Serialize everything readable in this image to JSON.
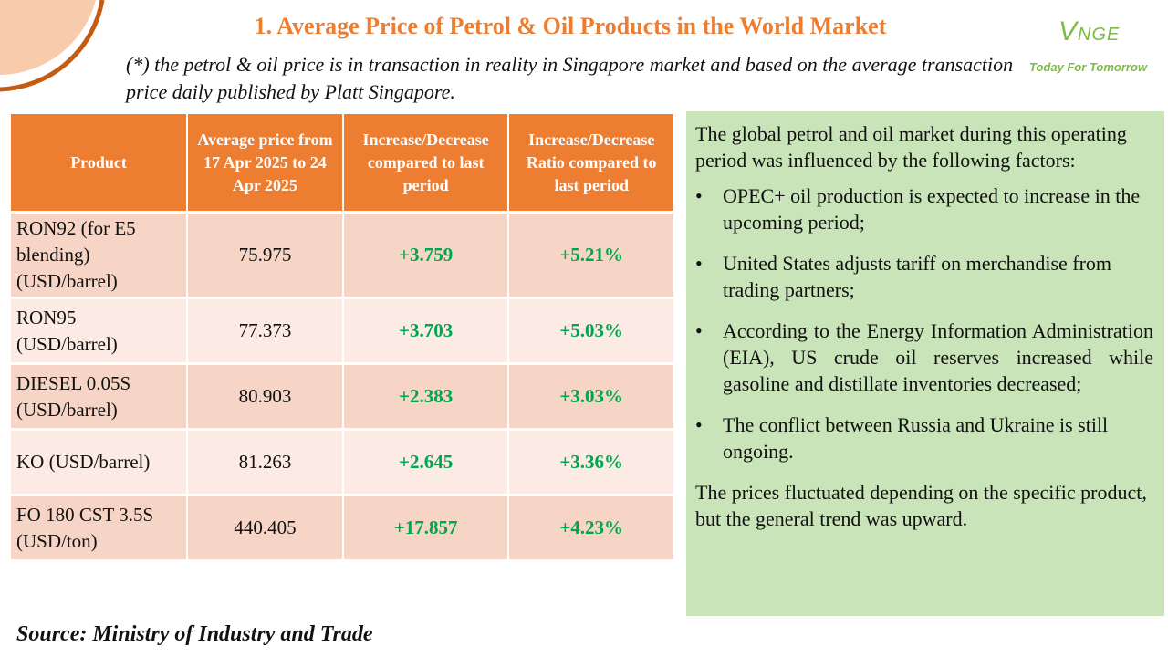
{
  "header": {
    "title": "1. Average Price of Petrol & Oil Products in the World Market",
    "subtitle": "(*) the petrol & oil price is in transaction in reality in Singapore market and based on the average transaction price daily published by Platt Singapore."
  },
  "logo": {
    "word": "VNGE",
    "tagline": "Today For Tomorrow",
    "color": "#7DBB42"
  },
  "table": {
    "headers": {
      "product": "Product",
      "avg_price": "Average price from 17 Apr 2025 to 24 Apr 2025",
      "change": "Increase/Decrease compared to last period",
      "ratio": "Increase/Decrease Ratio compared to last period"
    },
    "rows": [
      {
        "product": "RON92 (for E5 blending) (USD/barrel)",
        "avg_price": "75.975",
        "change": "+3.759",
        "ratio": "+5.21%"
      },
      {
        "product": "RON95 (USD/barrel)",
        "avg_price": "77.373",
        "change": "+3.703",
        "ratio": "+5.03%"
      },
      {
        "product": "DIESEL 0.05S (USD/barrel)",
        "avg_price": "80.903",
        "change": "+2.383",
        "ratio": "+3.03%"
      },
      {
        "product": "KO (USD/barrel)",
        "avg_price": "81.263",
        "change": "+2.645",
        "ratio": "+3.36%"
      },
      {
        "product": "FO 180 CST 3.5S (USD/ton)",
        "avg_price": "440.405",
        "change": "+17.857",
        "ratio": "+4.23%"
      }
    ],
    "colors": {
      "header": "#ED7D31",
      "row_dark": "#F6D5C6",
      "row_light": "#FBEBE4",
      "positive": "#00A64F"
    }
  },
  "panel": {
    "intro": "The global petrol and oil market during this operating period was influenced by the following factors:",
    "bullets": [
      "OPEC+ oil production is expected to increase in the upcoming period;",
      "United States adjusts tariff on merchandise from trading partners;",
      "According to the Energy Information Administration (EIA), US crude oil reserves increased while gasoline and distillate inventories decreased;",
      "The conflict between Russia and Ukraine is still ongoing."
    ],
    "conclusion": "The prices fluctuated depending on the specific product, but the general trend was upward.",
    "background": "#C9E4B8"
  },
  "source": "Source: Ministry of Industry and Trade"
}
